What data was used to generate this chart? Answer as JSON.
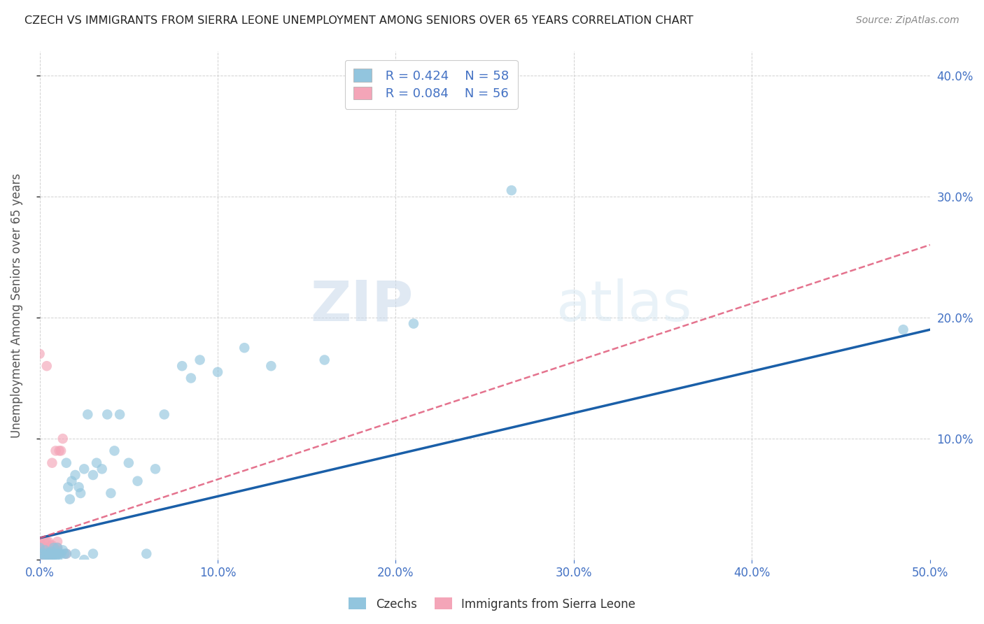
{
  "title": "CZECH VS IMMIGRANTS FROM SIERRA LEONE UNEMPLOYMENT AMONG SENIORS OVER 65 YEARS CORRELATION CHART",
  "source": "Source: ZipAtlas.com",
  "ylabel": "Unemployment Among Seniors over 65 years",
  "xlabel": "",
  "xlim": [
    0.0,
    0.5
  ],
  "ylim": [
    0.0,
    0.42
  ],
  "xticks": [
    0.0,
    0.1,
    0.2,
    0.3,
    0.4,
    0.5
  ],
  "yticks": [
    0.0,
    0.1,
    0.2,
    0.3,
    0.4
  ],
  "xticklabels": [
    "0.0%",
    "10.0%",
    "20.0%",
    "30.0%",
    "40.0%",
    "50.0%"
  ],
  "yticklabels": [
    "",
    "10.0%",
    "20.0%",
    "30.0%",
    "40.0%"
  ],
  "legend_label1": "Czechs",
  "legend_label2": "Immigrants from Sierra Leone",
  "R1": "0.424",
  "N1": "58",
  "R2": "0.084",
  "N2": "56",
  "color1": "#92c5de",
  "color2": "#f4a5b8",
  "trendline1_color": "#1a5fa8",
  "trendline2_color": "#e05a7a",
  "watermark_zip": "ZIP",
  "watermark_atlas": "atlas",
  "title_color": "#333333",
  "axis_tick_color": "#4472c4",
  "czechs_x": [
    0.0,
    0.0,
    0.001,
    0.002,
    0.003,
    0.003,
    0.004,
    0.005,
    0.005,
    0.006,
    0.006,
    0.007,
    0.007,
    0.008,
    0.008,
    0.009,
    0.01,
    0.01,
    0.01,
    0.011,
    0.012,
    0.013,
    0.014,
    0.015,
    0.015,
    0.016,
    0.017,
    0.018,
    0.02,
    0.02,
    0.022,
    0.023,
    0.025,
    0.025,
    0.027,
    0.03,
    0.03,
    0.032,
    0.035,
    0.038,
    0.04,
    0.042,
    0.045,
    0.05,
    0.055,
    0.06,
    0.065,
    0.07,
    0.08,
    0.085,
    0.09,
    0.1,
    0.115,
    0.13,
    0.16,
    0.21,
    0.265,
    0.485
  ],
  "czechs_y": [
    0.005,
    0.01,
    0.0,
    0.005,
    0.003,
    0.008,
    0.005,
    0.0,
    0.006,
    0.002,
    0.005,
    0.002,
    0.007,
    0.005,
    0.01,
    0.003,
    0.0,
    0.005,
    0.01,
    0.005,
    0.005,
    0.008,
    0.005,
    0.005,
    0.08,
    0.06,
    0.05,
    0.065,
    0.005,
    0.07,
    0.06,
    0.055,
    0.0,
    0.075,
    0.12,
    0.005,
    0.07,
    0.08,
    0.075,
    0.12,
    0.055,
    0.09,
    0.12,
    0.08,
    0.065,
    0.005,
    0.075,
    0.12,
    0.16,
    0.15,
    0.165,
    0.155,
    0.175,
    0.16,
    0.165,
    0.195,
    0.305,
    0.19
  ],
  "sierra_x": [
    0.0,
    0.0,
    0.0,
    0.0,
    0.0,
    0.0,
    0.0,
    0.0,
    0.0,
    0.0,
    0.0,
    0.0,
    0.0,
    0.0,
    0.0,
    0.001,
    0.001,
    0.002,
    0.002,
    0.002,
    0.003,
    0.003,
    0.003,
    0.003,
    0.003,
    0.004,
    0.004,
    0.004,
    0.004,
    0.004,
    0.005,
    0.005,
    0.005,
    0.005,
    0.005,
    0.005,
    0.006,
    0.006,
    0.007,
    0.007,
    0.007,
    0.007,
    0.008,
    0.008,
    0.008,
    0.009,
    0.009,
    0.009,
    0.01,
    0.01,
    0.01,
    0.01,
    0.011,
    0.012,
    0.013,
    0.015
  ],
  "sierra_y": [
    0.0,
    0.0,
    0.0,
    0.0,
    0.003,
    0.005,
    0.005,
    0.007,
    0.008,
    0.01,
    0.01,
    0.012,
    0.015,
    0.015,
    0.17,
    0.0,
    0.005,
    0.005,
    0.008,
    0.01,
    0.005,
    0.008,
    0.01,
    0.01,
    0.015,
    0.005,
    0.008,
    0.01,
    0.015,
    0.16,
    0.0,
    0.005,
    0.007,
    0.008,
    0.01,
    0.015,
    0.005,
    0.008,
    0.005,
    0.01,
    0.012,
    0.08,
    0.005,
    0.008,
    0.01,
    0.005,
    0.008,
    0.09,
    0.005,
    0.008,
    0.01,
    0.015,
    0.09,
    0.09,
    0.1,
    0.005
  ],
  "trendline1_x": [
    0.0,
    0.5
  ],
  "trendline1_y": [
    0.018,
    0.19
  ],
  "trendline2_x": [
    0.0,
    0.5
  ],
  "trendline2_y": [
    0.018,
    0.26
  ]
}
